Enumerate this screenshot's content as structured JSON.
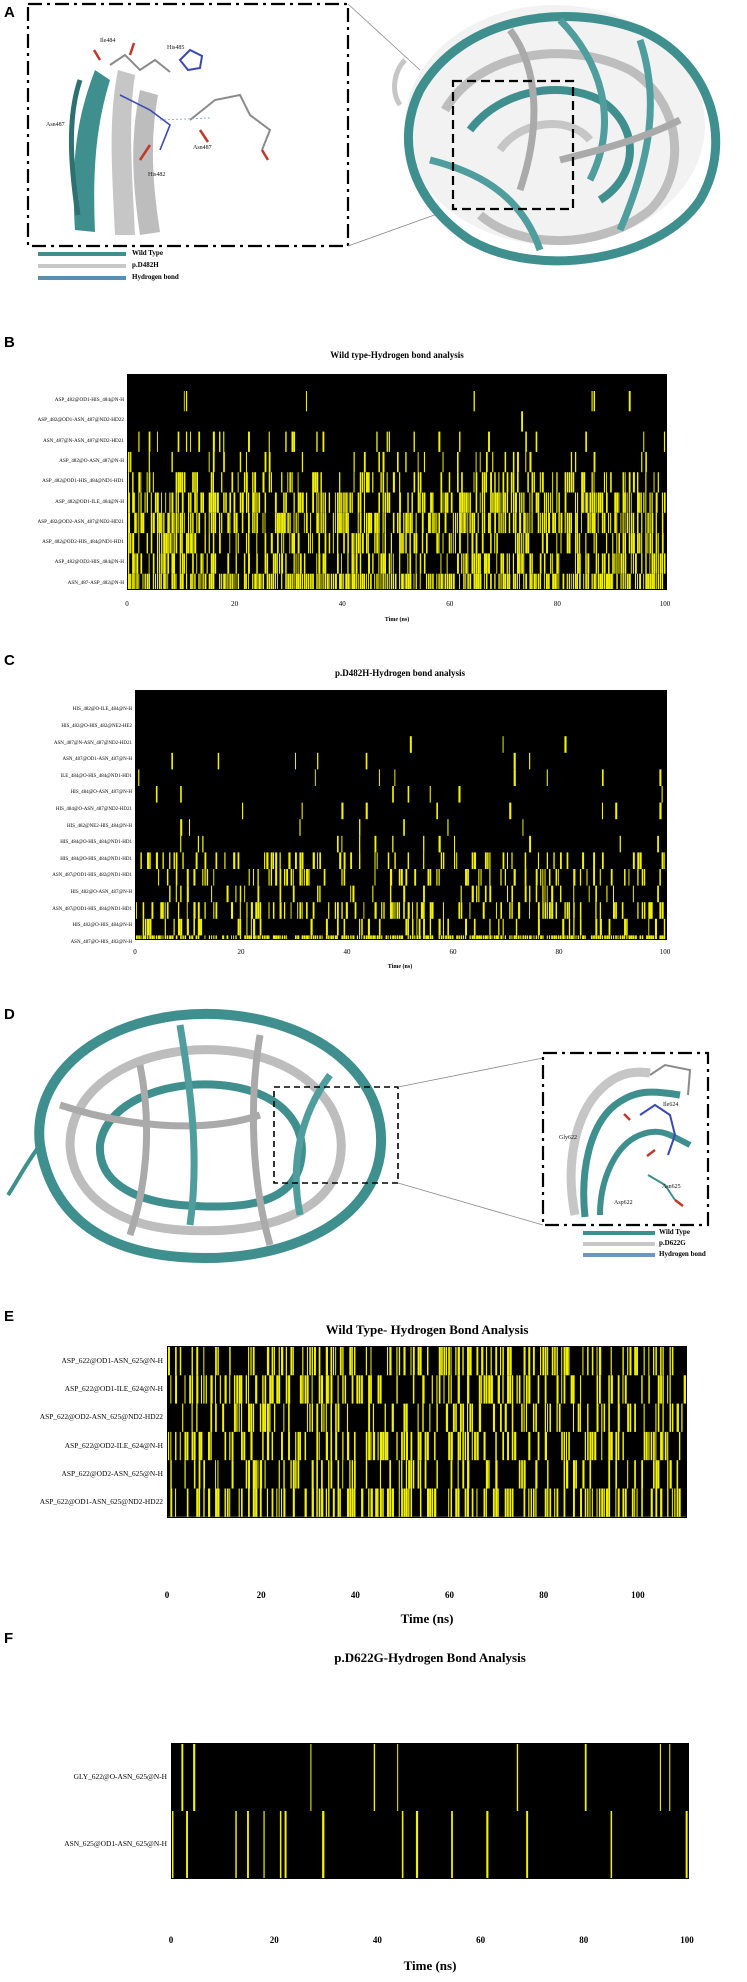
{
  "panels": {
    "A": {
      "letter": "A",
      "residues": [
        "Ile484",
        "His485",
        "Asn487",
        "Asn487",
        "His482"
      ],
      "legend": [
        "Wild Type",
        "p.D482H",
        "Hydrogen bond"
      ],
      "legend_colors": [
        "#3f8f8f",
        "#c8c8c8",
        "#5b8fb0"
      ]
    },
    "D": {
      "letter": "D",
      "residues": [
        "Ile624",
        "Gly622",
        "Asn625",
        "Asp622"
      ],
      "legend": [
        "Wild Type",
        "p.D622G",
        "Hydrogen bond"
      ],
      "legend_colors": [
        "#3f8f8f",
        "#c8c8c8",
        "#6f96c0"
      ]
    }
  },
  "chart_data": [
    {
      "panel": "B",
      "type": "heatmap",
      "title": "Wild type-Hydrogen bond analysis",
      "xlabel": "Time (ns)",
      "xlim": [
        0,
        100
      ],
      "xticks": [
        "0",
        "20",
        "40",
        "60",
        "80",
        "100"
      ],
      "rows": [
        {
          "label": "ASP_482@OD1-HIS_484@N-H",
          "occupancy": 0.03
        },
        {
          "label": "ASP_482@OD1-ASN_487@ND2-HD22",
          "occupancy": 0.01
        },
        {
          "label": "ASN_487@N-ASN_487@ND2-HD21",
          "occupancy": 0.1
        },
        {
          "label": "ASP_482@O-ASN_487@N-H",
          "occupancy": 0.18
        },
        {
          "label": "ASP_482@OD1-HIS_484@ND1-HD1",
          "occupancy": 0.4
        },
        {
          "label": "ASP_482@OD1-ILE_484@N-H",
          "occupancy": 0.6
        },
        {
          "label": "ASP_482@OD2-ASN_487@ND2-HD21",
          "occupancy": 0.65
        },
        {
          "label": "ASP_482@OD2-HIS_484@ND1-HD1",
          "occupancy": 0.45
        },
        {
          "label": "ASP_482@OD2-HIS_484@N-H",
          "occupancy": 0.55
        },
        {
          "label": "ASN_487-ASP_482@N-H",
          "occupancy": 0.8
        }
      ]
    },
    {
      "panel": "C",
      "type": "heatmap",
      "title": "p.D482H-Hydrogen bond analysis",
      "xlabel": "Time (ns)",
      "xlim": [
        0,
        100
      ],
      "xticks": [
        "0",
        "20",
        "40",
        "60",
        "80",
        "100"
      ],
      "rows": [
        {
          "label": "HIS_482@O-ILE_484@N-H",
          "occupancy": 0.0
        },
        {
          "label": "HIS_482@O-HIS_482@NE2-HE2",
          "occupancy": 0.0
        },
        {
          "label": "ASN_487@N-ASN_487@ND2-HD21",
          "occupancy": 0.01
        },
        {
          "label": "ASN_487@OD1-ASN_487@N-H",
          "occupancy": 0.02
        },
        {
          "label": "ILE_484@O-HIS_484@ND1-HD1",
          "occupancy": 0.03
        },
        {
          "label": "HIS_484@O-ASN_487@N-H",
          "occupancy": 0.03
        },
        {
          "label": "HIS_484@O-ASN_487@ND2-HD21",
          "occupancy": 0.02
        },
        {
          "label": "HIS_482@NE2-HIS_484@N-H",
          "occupancy": 0.04
        },
        {
          "label": "HIS_484@O-HIS_484@ND1-HD1",
          "occupancy": 0.05
        },
        {
          "label": "HIS_484@O-HIS_484@ND1-HD1",
          "occupancy": 0.25
        },
        {
          "label": "ASN_487@OD1-HIS_482@ND1-HD1",
          "occupancy": 0.3
        },
        {
          "label": "HIS_482@O-ASN_487@N-H",
          "occupancy": 0.15
        },
        {
          "label": "ASN_487@OD1-HIS_484@ND1-HD1",
          "occupancy": 0.35
        },
        {
          "label": "HIS_482@O-HIS_484@N-H",
          "occupancy": 0.2
        },
        {
          "label": "ASN_487@O-HIS_482@N-H",
          "occupancy": 0.85
        }
      ]
    },
    {
      "panel": "E",
      "type": "heatmap",
      "title": "Wild Type- Hydrogen Bond Analysis",
      "xlabel": "Time (ns)",
      "xlim": [
        0,
        110
      ],
      "xticks": [
        "0",
        "20",
        "40",
        "60",
        "80",
        "100"
      ],
      "rows": [
        {
          "label": "ASP_622@OD1-ASN_625@N-H",
          "occupancy": 0.45
        },
        {
          "label": "ASP_622@OD1-ILE_624@N-H",
          "occupancy": 0.45
        },
        {
          "label": "ASP_622@OD2-ASN_625@ND2-HD22",
          "occupancy": 0.4
        },
        {
          "label": "ASP_622@OD2-ILE_624@N-H",
          "occupancy": 0.4
        },
        {
          "label": "ASP_622@OD2-ASN_625@N-H",
          "occupancy": 0.3
        },
        {
          "label": "ASP_622@OD1-ASN_625@ND2-HD22",
          "occupancy": 0.55
        }
      ]
    },
    {
      "panel": "F",
      "type": "heatmap",
      "title": "p.D622G-Hydrogen Bond Analysis",
      "xlabel": "Time (ns)",
      "xlim": [
        0,
        100
      ],
      "xticks": [
        "0",
        "20",
        "40",
        "60",
        "80",
        "100"
      ],
      "rows": [
        {
          "label": "GLY_622@O-ASN_625@N-H",
          "occupancy": 0.04
        },
        {
          "label": "ASN_625@OD1-ASN_625@N-H",
          "occupancy": 0.08
        }
      ]
    }
  ]
}
